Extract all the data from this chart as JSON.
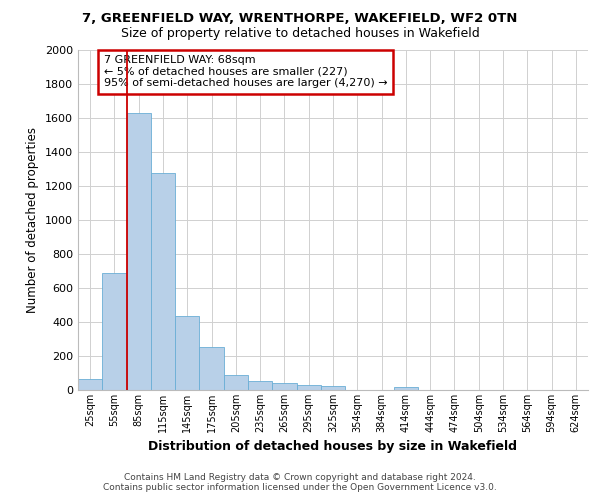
{
  "title1": "7, GREENFIELD WAY, WRENTHORPE, WAKEFIELD, WF2 0TN",
  "title2": "Size of property relative to detached houses in Wakefield",
  "xlabel": "Distribution of detached houses by size in Wakefield",
  "ylabel": "Number of detached properties",
  "footnote1": "Contains HM Land Registry data © Crown copyright and database right 2024.",
  "footnote2": "Contains public sector information licensed under the Open Government Licence v3.0.",
  "bar_labels": [
    "25sqm",
    "55sqm",
    "85sqm",
    "115sqm",
    "145sqm",
    "175sqm",
    "205sqm",
    "235sqm",
    "265sqm",
    "295sqm",
    "325sqm",
    "354sqm",
    "384sqm",
    "414sqm",
    "444sqm",
    "474sqm",
    "504sqm",
    "534sqm",
    "564sqm",
    "594sqm",
    "624sqm"
  ],
  "bar_values": [
    65,
    690,
    1630,
    1275,
    435,
    255,
    90,
    55,
    40,
    28,
    25,
    0,
    0,
    18,
    0,
    0,
    0,
    0,
    0,
    0,
    0
  ],
  "bar_color": "#b8d0e8",
  "bar_edge_color": "#6aaed6",
  "vline_x": 1.5,
  "vline_color": "#cc0000",
  "annotation_text": "7 GREENFIELD WAY: 68sqm\n← 5% of detached houses are smaller (227)\n95% of semi-detached houses are larger (4,270) →",
  "annotation_box_color": "white",
  "annotation_box_edge_color": "#cc0000",
  "ylim": [
    0,
    2000
  ],
  "yticks": [
    0,
    200,
    400,
    600,
    800,
    1000,
    1200,
    1400,
    1600,
    1800,
    2000
  ],
  "bg_color": "white",
  "grid_color": "#d0d0d0"
}
